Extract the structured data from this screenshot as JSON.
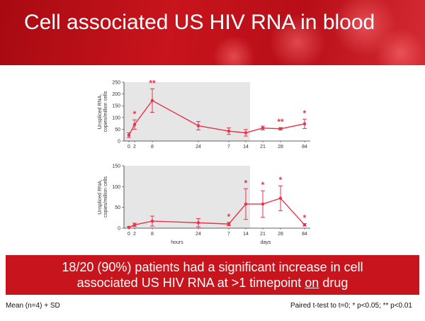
{
  "slide": {
    "title": "Cell associated US HIV RNA in blood",
    "banner_line1": "18/20 (90%) patients had a significant increase in cell",
    "banner_line2_pre": "associated US HIV RNA at >1 timepoint ",
    "banner_line2_emph": "on",
    "banner_line2_post": " drug",
    "footnote_left": "Mean (n=4) + SD",
    "footnote_right": "Paired t-test to t=0; *  p<0.05; ** p<0.01"
  },
  "colors": {
    "header": "#c8141c",
    "banner": "#c8141c",
    "series": "#e8334a",
    "shaded": "#e6e6e6"
  },
  "chart_data": [
    {
      "type": "line",
      "ylabel_line1": "Unspliced RNA,",
      "ylabel_line2": "copies/million cells",
      "ylim": [
        0,
        250
      ],
      "yticks": [
        0,
        50,
        100,
        150,
        200,
        250
      ],
      "shaded_until_label": "14",
      "x_tick_labels": [
        "0",
        "2",
        "8",
        "24",
        "7",
        "14",
        "21",
        "28",
        "84"
      ],
      "series": [
        {
          "values": [
            25,
            70,
            172,
            65,
            42,
            35,
            55,
            52,
            73
          ],
          "sd": [
            10,
            20,
            50,
            18,
            14,
            14,
            8,
            5,
            20
          ],
          "significance": [
            "",
            "*",
            "**",
            "",
            "",
            "",
            "",
            "**",
            "*"
          ]
        }
      ]
    },
    {
      "type": "line",
      "ylabel_line1": "Unspliced RNA,",
      "ylabel_line2": "copies/million cells",
      "ylim": [
        0,
        150
      ],
      "yticks": [
        0,
        50,
        100,
        150
      ],
      "shaded_until_label": "14",
      "x_tick_labels": [
        "0",
        "2",
        "8",
        "24",
        "7",
        "14",
        "21",
        "28",
        "84"
      ],
      "x_group_labels": [
        "hours",
        "days"
      ],
      "series": [
        {
          "values": [
            2,
            8,
            17,
            13,
            10,
            58,
            58,
            72,
            8
          ],
          "sd": [
            2,
            4,
            12,
            10,
            4,
            37,
            32,
            30,
            3
          ],
          "significance": [
            "",
            "",
            "",
            "",
            "*",
            "*",
            "*",
            "*",
            "*"
          ]
        }
      ]
    }
  ]
}
